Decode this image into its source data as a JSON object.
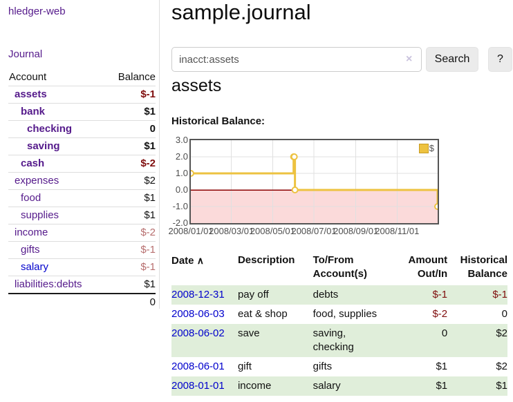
{
  "sidebar": {
    "brand": "hledger-web",
    "journal_label": "Journal",
    "accounts_table": {
      "account_header": "Account",
      "balance_header": "Balance",
      "rows": [
        {
          "label": "assets",
          "indent": 0,
          "emphasis": true,
          "link": "purple",
          "balance": "$-1",
          "balance_negative": true
        },
        {
          "label": "bank",
          "indent": 1,
          "emphasis": true,
          "link": "purple",
          "balance": "$1",
          "balance_negative": false
        },
        {
          "label": "checking",
          "indent": 2,
          "emphasis": true,
          "link": "purple",
          "balance": "0",
          "balance_negative": false
        },
        {
          "label": "saving",
          "indent": 2,
          "emphasis": true,
          "link": "purple",
          "balance": "$1",
          "balance_negative": false
        },
        {
          "label": "cash",
          "indent": 1,
          "emphasis": true,
          "link": "purple",
          "balance": "$-2",
          "balance_negative": true
        },
        {
          "label": "expenses",
          "indent": 0,
          "emphasis": false,
          "link": "purple",
          "balance": "$2",
          "balance_negative": false
        },
        {
          "label": "food",
          "indent": 1,
          "emphasis": false,
          "link": "purple",
          "balance": "$1",
          "balance_negative": false
        },
        {
          "label": "supplies",
          "indent": 1,
          "emphasis": false,
          "link": "purple",
          "balance": "$1",
          "balance_negative": false
        },
        {
          "label": "income",
          "indent": 0,
          "emphasis": false,
          "link": "purple",
          "balance": "$-2",
          "balance_negative": true
        },
        {
          "label": "gifts",
          "indent": 1,
          "emphasis": false,
          "link": "purple",
          "balance": "$-1",
          "balance_negative": true
        },
        {
          "label": "salary",
          "indent": 1,
          "emphasis": false,
          "link": "blue",
          "balance": "$-1",
          "balance_negative": true
        },
        {
          "label": "liabilities:debts",
          "indent": 0,
          "emphasis": false,
          "link": "purple",
          "balance": "$1",
          "balance_negative": false
        }
      ],
      "total": "0"
    }
  },
  "main": {
    "title": "sample.journal",
    "search": {
      "value": "inacct:assets",
      "clear_icon": "×",
      "button_label": "Search",
      "help_label": "?"
    },
    "account_heading": "assets",
    "register": {
      "headers": {
        "date": "Date",
        "sort_icon": "∧",
        "description": "Description",
        "accounts": "To/From Account(s)",
        "amount": "Amount Out/In",
        "balance": "Historical Balance"
      },
      "rows": [
        {
          "date": "2008-12-31",
          "description": "pay off",
          "accounts": "debts",
          "amount": "$-1",
          "amount_negative": true,
          "balance": "$-1",
          "balance_negative": true
        },
        {
          "date": "2008-06-03",
          "description": "eat & shop",
          "accounts": "food, supplies",
          "amount": "$-2",
          "amount_negative": true,
          "balance": "0",
          "balance_negative": false
        },
        {
          "date": "2008-06-02",
          "description": "save",
          "accounts": "saving, checking",
          "amount": "0",
          "amount_negative": false,
          "balance": "$2",
          "balance_negative": false
        },
        {
          "date": "2008-06-01",
          "description": "gift",
          "accounts": "gifts",
          "amount": "$1",
          "amount_negative": false,
          "balance": "$2",
          "balance_negative": false
        },
        {
          "date": "2008-01-01",
          "description": "income",
          "accounts": "salary",
          "amount": "$1",
          "amount_negative": false,
          "balance": "$1",
          "balance_negative": false
        }
      ]
    }
  },
  "chart_data": {
    "type": "line",
    "title": "Historical Balance:",
    "x": [
      "2008-01-01",
      "2008-06-01",
      "2008-06-02",
      "2008-06-03",
      "2008-12-31"
    ],
    "series": [
      {
        "name": "$",
        "color": "#edc240",
        "values": [
          1,
          2,
          2,
          0,
          -1
        ]
      }
    ],
    "step": true,
    "xlim": [
      "2008-01-01",
      "2008-12-31"
    ],
    "ylim": [
      -2,
      3
    ],
    "yticks": [
      "3.0",
      "2.0",
      "1.0",
      "0.0",
      "-1.0",
      "-2.0"
    ],
    "xticks": [
      "2008/01/01",
      "2008/03/01",
      "2008/05/01",
      "2008/07/01",
      "2008/09/01",
      "2008/11/01"
    ],
    "legend": {
      "position": "top-right",
      "label": "$"
    },
    "grid": true,
    "grid_color": "#e0e0e0",
    "border_color": "#545454",
    "negative_region_color": "#fbdada",
    "zero_line_color": "#8b0000",
    "marker_fill": "#ffffff"
  }
}
